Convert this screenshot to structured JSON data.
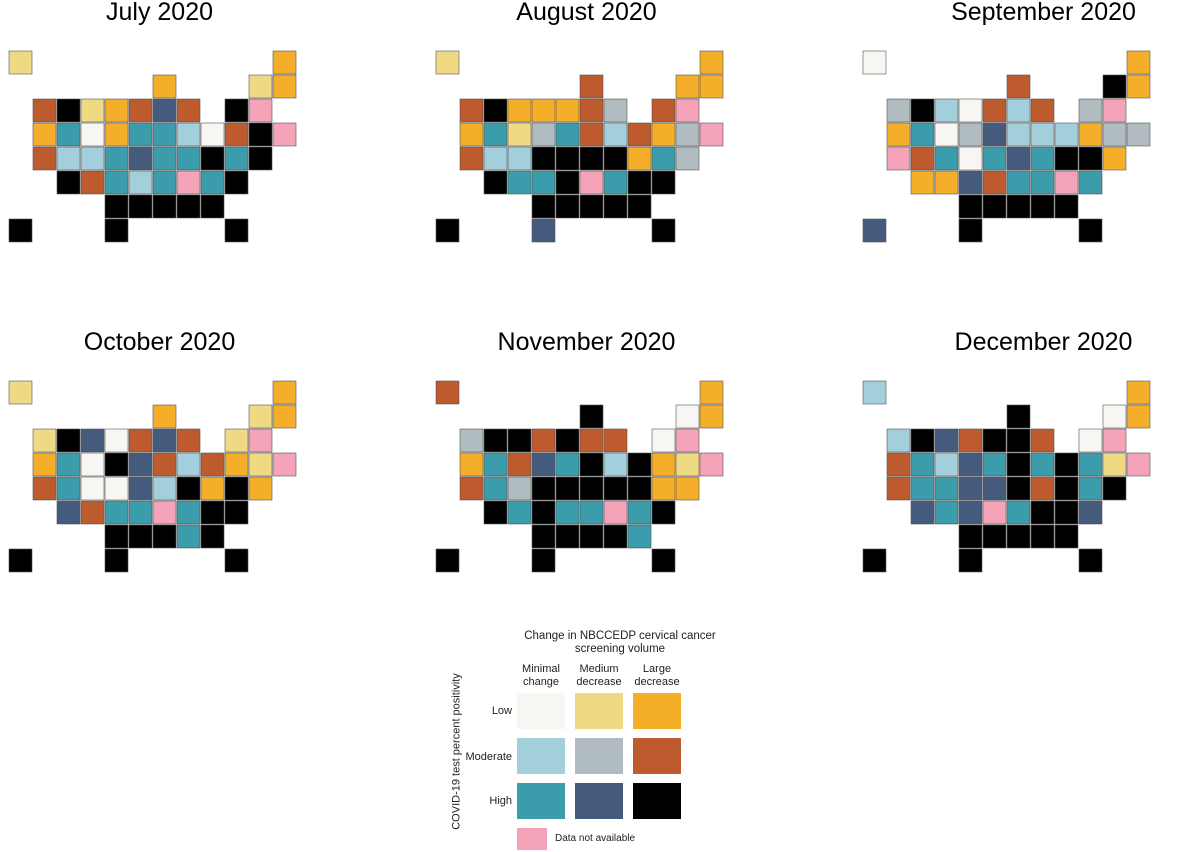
{
  "panels": [
    {
      "title": "July 2020"
    },
    {
      "title": "August 2020"
    },
    {
      "title": "September 2020"
    },
    {
      "title": "October 2020"
    },
    {
      "title": "November 2020"
    },
    {
      "title": "December 2020"
    }
  ],
  "legend": {
    "title": "Change in NBCCEDP cervical cancer screening volume",
    "columns": [
      "Minimal change",
      "Medium decrease",
      "Large decrease"
    ],
    "rows": [
      "Low",
      "Moderate",
      "High"
    ],
    "y_label": "COVID-19 test percent positivity",
    "na_label": "Data not available"
  }
}
